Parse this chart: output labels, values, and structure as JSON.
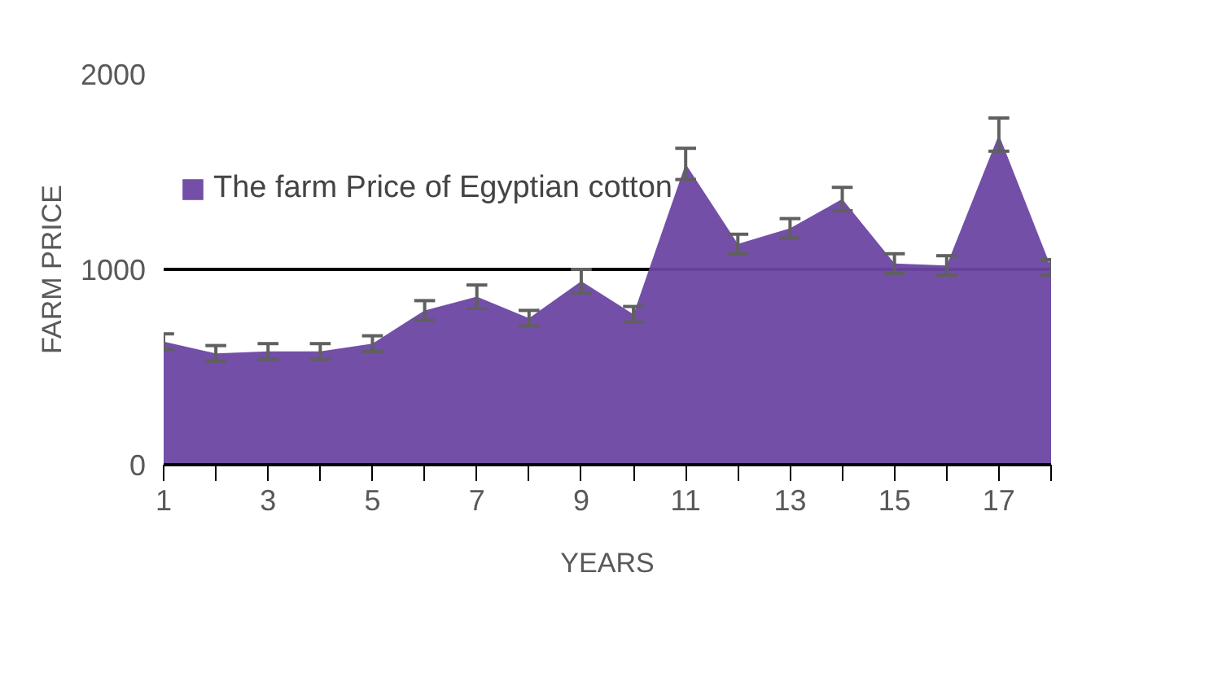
{
  "chart_data": {
    "type": "area",
    "xlabel": "YEARS",
    "ylabel": "FARM PRICE",
    "x": [
      1,
      2,
      3,
      4,
      5,
      6,
      7,
      8,
      9,
      10,
      11,
      12,
      13,
      14,
      15,
      16,
      17,
      18
    ],
    "series": [
      {
        "name": "The farm Price of Egyptian cotton",
        "color": "#6b46a3",
        "values": [
          630,
          570,
          580,
          580,
          620,
          790,
          860,
          750,
          940,
          770,
          1540,
          1130,
          1210,
          1360,
          1030,
          1020,
          1690,
          1010
        ],
        "errors": [
          40,
          40,
          40,
          40,
          40,
          50,
          60,
          40,
          60,
          40,
          80,
          50,
          50,
          60,
          50,
          50,
          85,
          40
        ]
      }
    ],
    "xlim": [
      1,
      18
    ],
    "xticks": [
      1,
      3,
      5,
      7,
      9,
      11,
      13,
      15,
      17
    ],
    "ylim": [
      0,
      2000
    ],
    "yticks": [
      0,
      1000,
      2000
    ],
    "grid": "y",
    "legend": "top"
  }
}
